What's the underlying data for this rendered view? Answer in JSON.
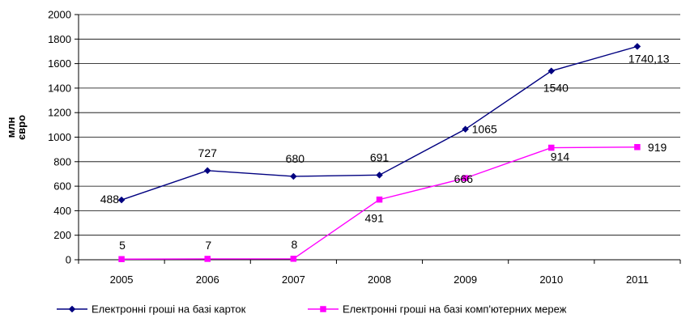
{
  "chart_data": {
    "type": "line",
    "title": "",
    "xlabel": "",
    "ylabel_lines": [
      "млн",
      "євро"
    ],
    "categories": [
      "2005",
      "2006",
      "2007",
      "2008",
      "2009",
      "2010",
      "2011"
    ],
    "ylim": [
      0,
      2000
    ],
    "yticks": [
      0,
      200,
      400,
      600,
      800,
      1000,
      1200,
      1400,
      1600,
      1800,
      2000
    ],
    "grid": true,
    "legend": "bottom",
    "series": [
      {
        "name": "Електронні гроші на базі карток",
        "color": "#000080",
        "marker": "diamond",
        "values": [
          488,
          727,
          680,
          691,
          1065,
          1540,
          1740.13
        ],
        "labels": [
          "488",
          "727",
          "680",
          "691",
          "1065",
          "1540",
          "1740,13"
        ]
      },
      {
        "name": "Електронні гроші на базі комп'ютерних мереж",
        "color": "#ff00ff",
        "marker": "square",
        "values": [
          5,
          7,
          8,
          491,
          666,
          914,
          919
        ],
        "labels": [
          "5",
          "7",
          "8",
          "491",
          "666",
          "914",
          "919"
        ]
      }
    ]
  }
}
